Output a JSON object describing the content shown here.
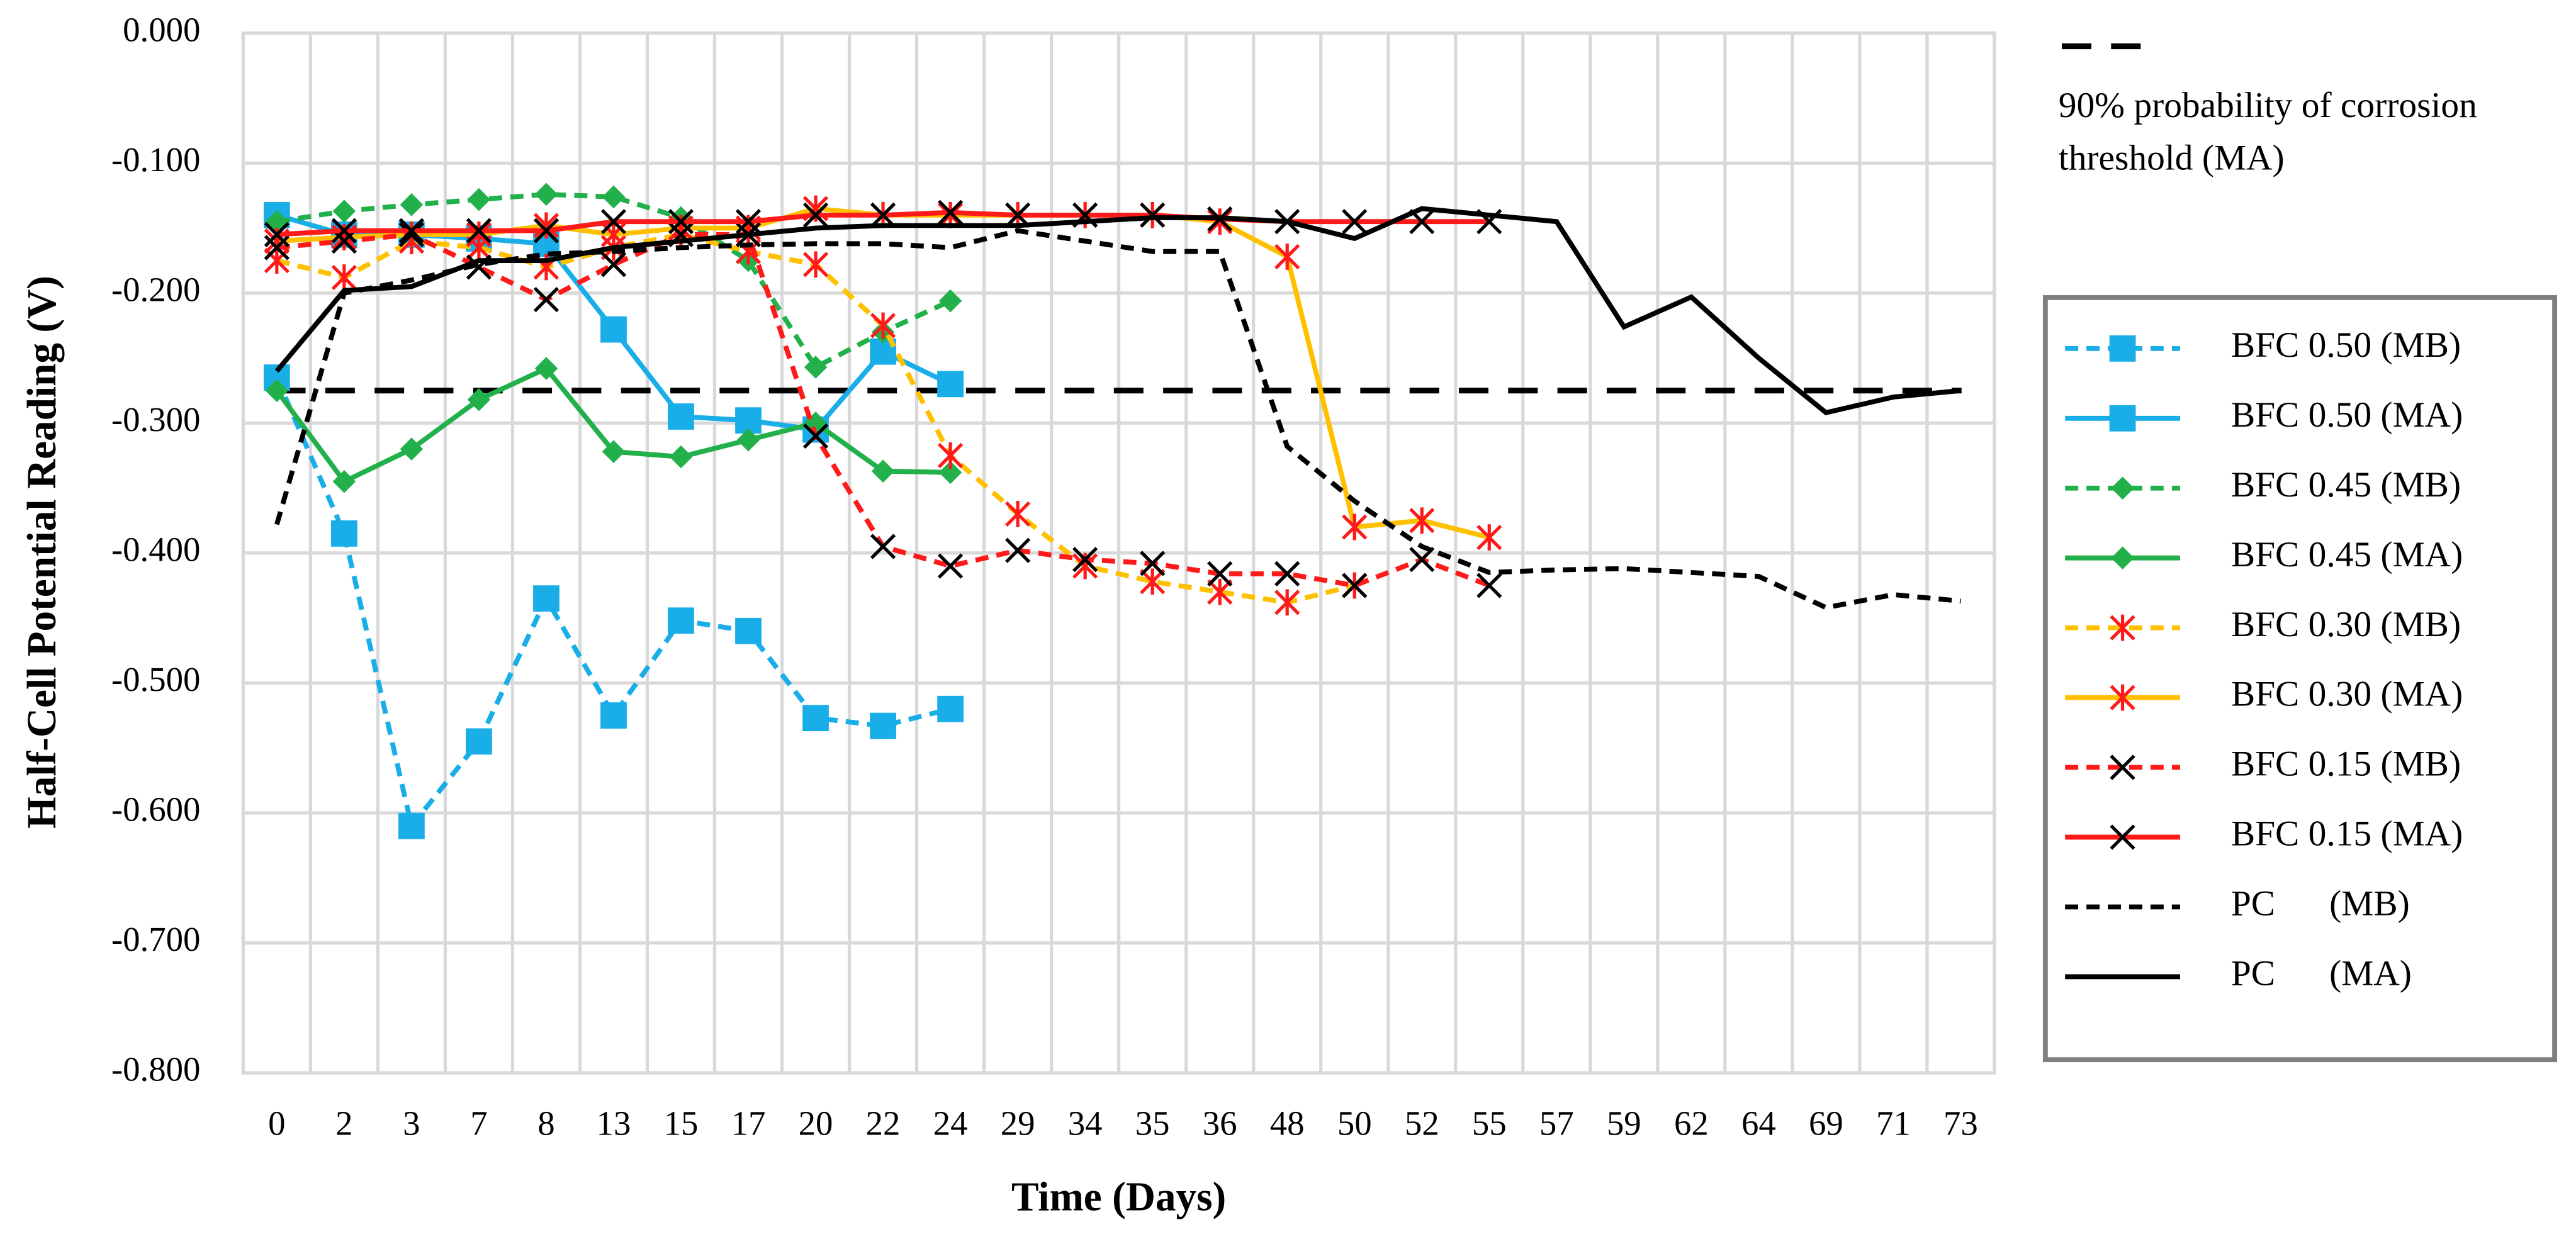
{
  "chart_data": {
    "type": "line",
    "xlabel": "Time (Days)",
    "ylabel": "Half-Cell Potential Reading (V)",
    "categories": [
      "0",
      "2",
      "3",
      "7",
      "8",
      "13",
      "15",
      "17",
      "20",
      "22",
      "24",
      "29",
      "34",
      "35",
      "36",
      "48",
      "50",
      "52",
      "55",
      "57",
      "59",
      "62",
      "64",
      "69",
      "71",
      "73"
    ],
    "ylim": [
      -0.8,
      0
    ],
    "yticks": [
      {
        "value": 0,
        "label": "0.000"
      },
      {
        "value": -0.1,
        "label": "-0.100"
      },
      {
        "value": -0.2,
        "label": "-0.200"
      },
      {
        "value": -0.3,
        "label": "-0.300"
      },
      {
        "value": -0.4,
        "label": "-0.400"
      },
      {
        "value": -0.5,
        "label": "-0.500"
      },
      {
        "value": -0.6,
        "label": "-0.600"
      },
      {
        "value": -0.7,
        "label": "-0.700"
      },
      {
        "value": -0.8,
        "label": "-0.800"
      }
    ],
    "grid": true,
    "threshold": {
      "label": "90% probability of corrosion threshold (MA)",
      "value": -0.275,
      "color": "#000000"
    },
    "series": [
      {
        "name": "BFC 0.50 (MB)",
        "color": "#1aaee8",
        "dashed": true,
        "marker": "square",
        "marker_color": "#1aaee8",
        "values": [
          -0.265,
          -0.385,
          -0.61,
          -0.545,
          -0.435,
          -0.525,
          -0.452,
          -0.46,
          -0.527,
          -0.533,
          -0.52,
          null,
          null,
          null,
          null,
          null,
          null,
          null,
          null,
          null,
          null,
          null,
          null,
          null,
          null,
          null
        ]
      },
      {
        "name": "BFC 0.50 (MA)",
        "color": "#1aaee8",
        "dashed": false,
        "marker": "square",
        "marker_color": "#1aaee8",
        "values": [
          -0.14,
          -0.155,
          -0.155,
          -0.158,
          -0.162,
          -0.228,
          -0.295,
          -0.298,
          -0.305,
          -0.245,
          -0.27,
          null,
          null,
          null,
          null,
          null,
          null,
          null,
          null,
          null,
          null,
          null,
          null,
          null,
          null,
          null
        ]
      },
      {
        "name": "BFC 0.45 (MB)",
        "color": "#22b04b",
        "dashed": true,
        "marker": "diamond",
        "marker_color": "#22b04b",
        "values": [
          -0.145,
          -0.137,
          -0.132,
          -0.128,
          -0.124,
          -0.126,
          -0.142,
          -0.175,
          -0.257,
          -0.23,
          -0.206,
          null,
          null,
          null,
          null,
          null,
          null,
          null,
          null,
          null,
          null,
          null,
          null,
          null,
          null,
          null
        ]
      },
      {
        "name": "BFC 0.45 (MA)",
        "color": "#22b04b",
        "dashed": false,
        "marker": "diamond",
        "marker_color": "#22b04b",
        "values": [
          -0.275,
          -0.345,
          -0.32,
          -0.282,
          -0.258,
          -0.322,
          -0.326,
          -0.313,
          -0.3,
          -0.337,
          -0.338,
          null,
          null,
          null,
          null,
          null,
          null,
          null,
          null,
          null,
          null,
          null,
          null,
          null,
          null,
          null
        ]
      },
      {
        "name": "BFC 0.30 (MB)",
        "color": "#ffc000",
        "dashed": true,
        "marker": "star",
        "marker_color": "#ff1a1a",
        "values": [
          -0.175,
          -0.188,
          -0.16,
          -0.165,
          -0.18,
          -0.165,
          -0.155,
          -0.168,
          -0.178,
          -0.225,
          -0.325,
          -0.37,
          -0.41,
          -0.422,
          -0.43,
          -0.438,
          -0.425,
          null,
          null,
          null,
          null,
          null,
          null,
          null,
          null,
          null
        ]
      },
      {
        "name": "BFC 0.30 (MA)",
        "color": "#ffc000",
        "dashed": false,
        "marker": "star",
        "marker_color": "#ff1a1a",
        "values": [
          -0.16,
          -0.157,
          -0.155,
          -0.155,
          -0.148,
          -0.155,
          -0.15,
          -0.15,
          -0.135,
          -0.14,
          -0.14,
          -0.14,
          -0.14,
          -0.14,
          -0.145,
          -0.172,
          -0.38,
          -0.375,
          -0.388,
          null,
          null,
          null,
          null,
          null,
          null,
          null
        ]
      },
      {
        "name": "BFC 0.15 (MB)",
        "color": "#ff1a1a",
        "dashed": true,
        "marker": "x",
        "marker_color": "#000000",
        "values": [
          -0.165,
          -0.16,
          -0.155,
          -0.18,
          -0.205,
          -0.178,
          -0.155,
          -0.155,
          -0.31,
          -0.395,
          -0.41,
          -0.398,
          -0.405,
          -0.408,
          -0.416,
          -0.416,
          -0.425,
          -0.405,
          -0.425,
          null,
          null,
          null,
          null,
          null,
          null,
          null
        ]
      },
      {
        "name": "BFC 0.15 (MA)",
        "color": "#ff1a1a",
        "dashed": false,
        "marker": "x",
        "marker_color": "#000000",
        "values": [
          -0.155,
          -0.152,
          -0.152,
          -0.152,
          -0.152,
          -0.145,
          -0.145,
          -0.145,
          -0.14,
          -0.14,
          -0.138,
          -0.14,
          -0.14,
          -0.14,
          -0.143,
          -0.145,
          -0.145,
          -0.145,
          -0.145,
          null,
          null,
          null,
          null,
          null,
          null,
          null
        ]
      },
      {
        "name": "PC      (MB)",
        "color": "#000000",
        "dashed": true,
        "marker": "none",
        "marker_color": "#000000",
        "values": [
          -0.378,
          -0.2,
          -0.19,
          -0.178,
          -0.17,
          -0.168,
          -0.165,
          -0.163,
          -0.162,
          -0.162,
          -0.165,
          -0.152,
          -0.16,
          -0.168,
          -0.168,
          -0.318,
          -0.36,
          -0.395,
          -0.415,
          -0.413,
          -0.412,
          -0.415,
          -0.418,
          -0.442,
          -0.432,
          -0.437
        ]
      },
      {
        "name": "PC      (MA)",
        "color": "#000000",
        "dashed": false,
        "marker": "none",
        "marker_color": "#000000",
        "values": [
          -0.26,
          -0.198,
          -0.195,
          -0.175,
          -0.175,
          -0.165,
          -0.16,
          -0.155,
          -0.15,
          -0.148,
          -0.148,
          -0.148,
          -0.145,
          -0.142,
          -0.142,
          -0.145,
          -0.158,
          -0.135,
          -0.14,
          -0.145,
          -0.226,
          -0.203,
          -0.25,
          -0.292,
          -0.28,
          -0.275
        ]
      }
    ]
  }
}
